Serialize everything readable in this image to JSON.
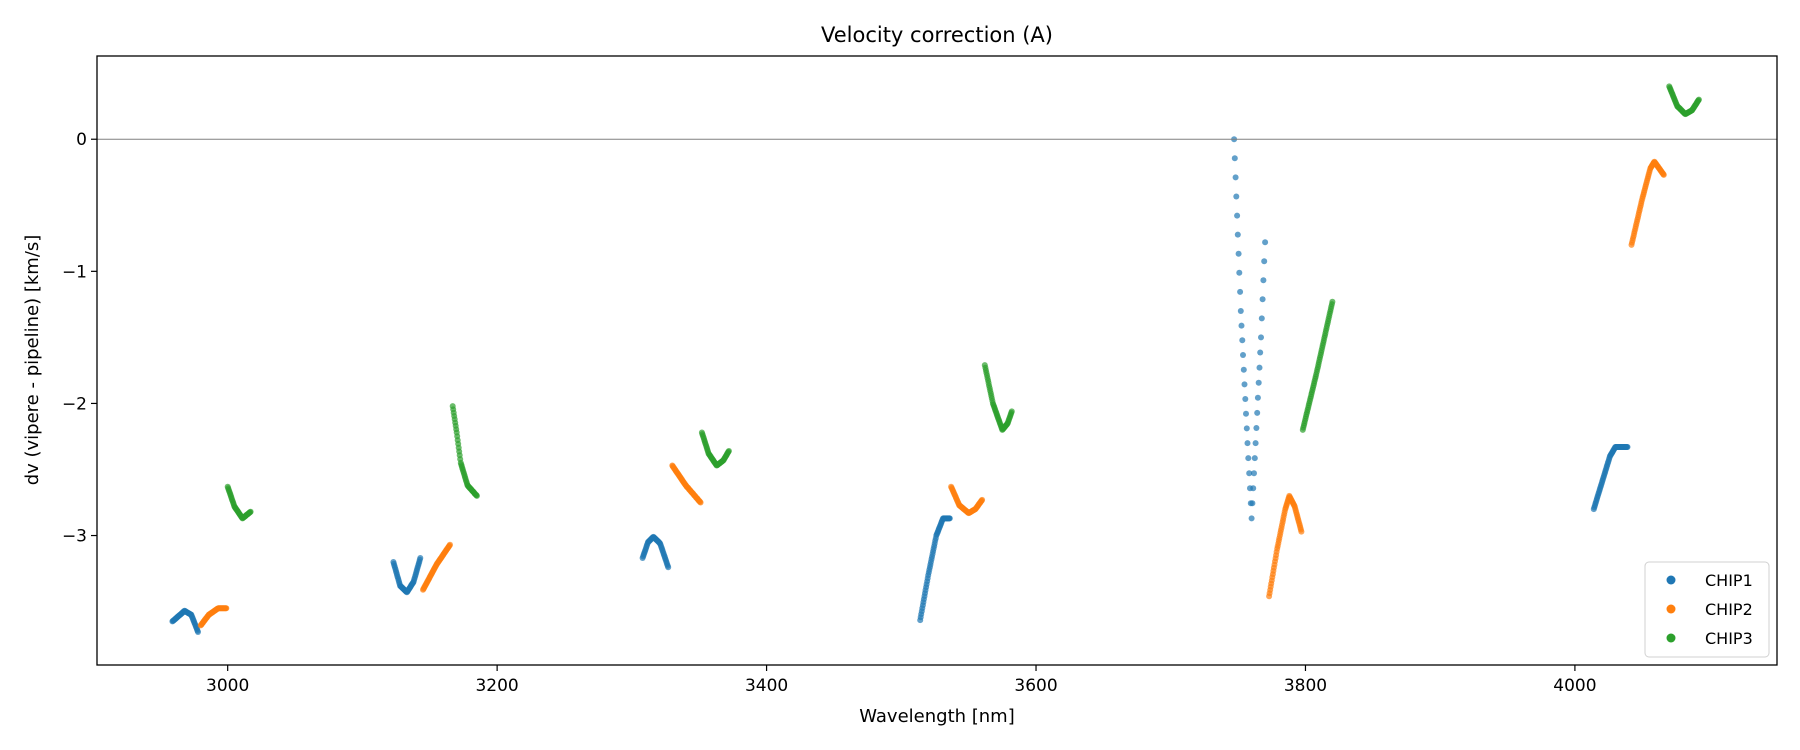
{
  "chart_data": {
    "type": "scatter",
    "title": "Velocity correction (A)",
    "xlabel": "Wavelength [nm]",
    "ylabel": "dv (vipere - pipeline) [km/s]",
    "xlim": [
      2903,
      4150
    ],
    "ylim": [
      -3.98,
      0.63
    ],
    "xticks": [
      3000,
      3200,
      3400,
      3600,
      3800,
      4000
    ],
    "xtick_labels": [
      "3000",
      "3200",
      "3400",
      "3600",
      "3800",
      "4000"
    ],
    "yticks": [
      0,
      -1,
      -2,
      -3
    ],
    "ytick_labels": [
      "0",
      "−1",
      "−2",
      "−3"
    ],
    "hline": 0,
    "grid": false,
    "legend_position": "bottom-right",
    "series": [
      {
        "name": "CHIP1",
        "color": "#1f77b4",
        "segments": [
          {
            "x": [
              2959,
              2968,
              2973,
              2978
            ],
            "y": [
              -3.65,
              -3.57,
              -3.6,
              -3.73
            ],
            "step": 0.4
          },
          {
            "x": [
              3123,
              3128,
              3133,
              3138,
              3143
            ],
            "y": [
              -3.2,
              -3.38,
              -3.43,
              -3.35,
              -3.17
            ],
            "step": 0.4
          },
          {
            "x": [
              3308,
              3312,
              3316,
              3321,
              3327
            ],
            "y": [
              -3.17,
              -3.05,
              -3.01,
              -3.06,
              -3.24
            ],
            "step": 0.4
          },
          {
            "x": [
              3514,
              3520,
              3526,
              3531,
              3536
            ],
            "y": [
              -3.64,
              -3.3,
              -3.0,
              -2.87,
              -2.87
            ],
            "step": 0.4
          },
          {
            "x": [
              3747,
              3752,
              3757,
              3760,
              3763,
              3767,
              3770
            ],
            "y": [
              0,
              -1.3,
              -2.3,
              -2.87,
              -2.3,
              -1.5,
              -0.78
            ],
            "step": 0.55
          },
          {
            "x": [
              4014,
              4020,
              4026,
              4030,
              4039
            ],
            "y": [
              -2.8,
              -2.6,
              -2.4,
              -2.33,
              -2.33
            ],
            "step": 0.4
          }
        ]
      },
      {
        "name": "CHIP2",
        "color": "#ff7f0e",
        "segments": [
          {
            "x": [
              2980,
              2986,
              2993,
              2999
            ],
            "y": [
              -3.68,
              -3.6,
              -3.55,
              -3.55
            ],
            "step": 0.4
          },
          {
            "x": [
              3145,
              3155,
              3165
            ],
            "y": [
              -3.41,
              -3.22,
              -3.07
            ],
            "step": 0.4
          },
          {
            "x": [
              3330,
              3340,
              3351
            ],
            "y": [
              -2.47,
              -2.62,
              -2.75
            ],
            "step": 0.4
          },
          {
            "x": [
              3537,
              3543,
              3550,
              3555,
              3560
            ],
            "y": [
              -2.63,
              -2.77,
              -2.83,
              -2.8,
              -2.73
            ],
            "step": 0.4
          },
          {
            "x": [
              3773,
              3779,
              3785,
              3788,
              3792,
              3797
            ],
            "y": [
              -3.46,
              -3.1,
              -2.8,
              -2.7,
              -2.78,
              -2.97
            ],
            "step": 0.4
          },
          {
            "x": [
              4042,
              4050,
              4056,
              4059,
              4066
            ],
            "y": [
              -0.8,
              -0.45,
              -0.22,
              -0.17,
              -0.27
            ],
            "step": 0.4
          }
        ]
      },
      {
        "name": "CHIP3",
        "color": "#2ca02c",
        "segments": [
          {
            "x": [
              3000,
              3005,
              3011,
              3017
            ],
            "y": [
              -2.63,
              -2.78,
              -2.87,
              -2.82
            ],
            "step": 0.4
          },
          {
            "x": [
              3167,
              3170,
              3173,
              3178,
              3185
            ],
            "y": [
              -2.02,
              -2.22,
              -2.45,
              -2.62,
              -2.7
            ],
            "step": 0.4
          },
          {
            "x": [
              3352,
              3357,
              3363,
              3368,
              3372
            ],
            "y": [
              -2.22,
              -2.38,
              -2.47,
              -2.43,
              -2.36
            ],
            "step": 0.4
          },
          {
            "x": [
              3562,
              3568,
              3575,
              3579,
              3582
            ],
            "y": [
              -1.71,
              -2.0,
              -2.2,
              -2.15,
              -2.06
            ],
            "step": 0.4
          },
          {
            "x": [
              3798,
              3808,
              3820
            ],
            "y": [
              -2.2,
              -1.78,
              -1.23
            ],
            "step": 0.4
          },
          {
            "x": [
              4070,
              4076,
              4082,
              4087,
              4092
            ],
            "y": [
              0.4,
              0.25,
              0.19,
              0.22,
              0.3
            ],
            "step": 0.4
          }
        ]
      }
    ]
  }
}
